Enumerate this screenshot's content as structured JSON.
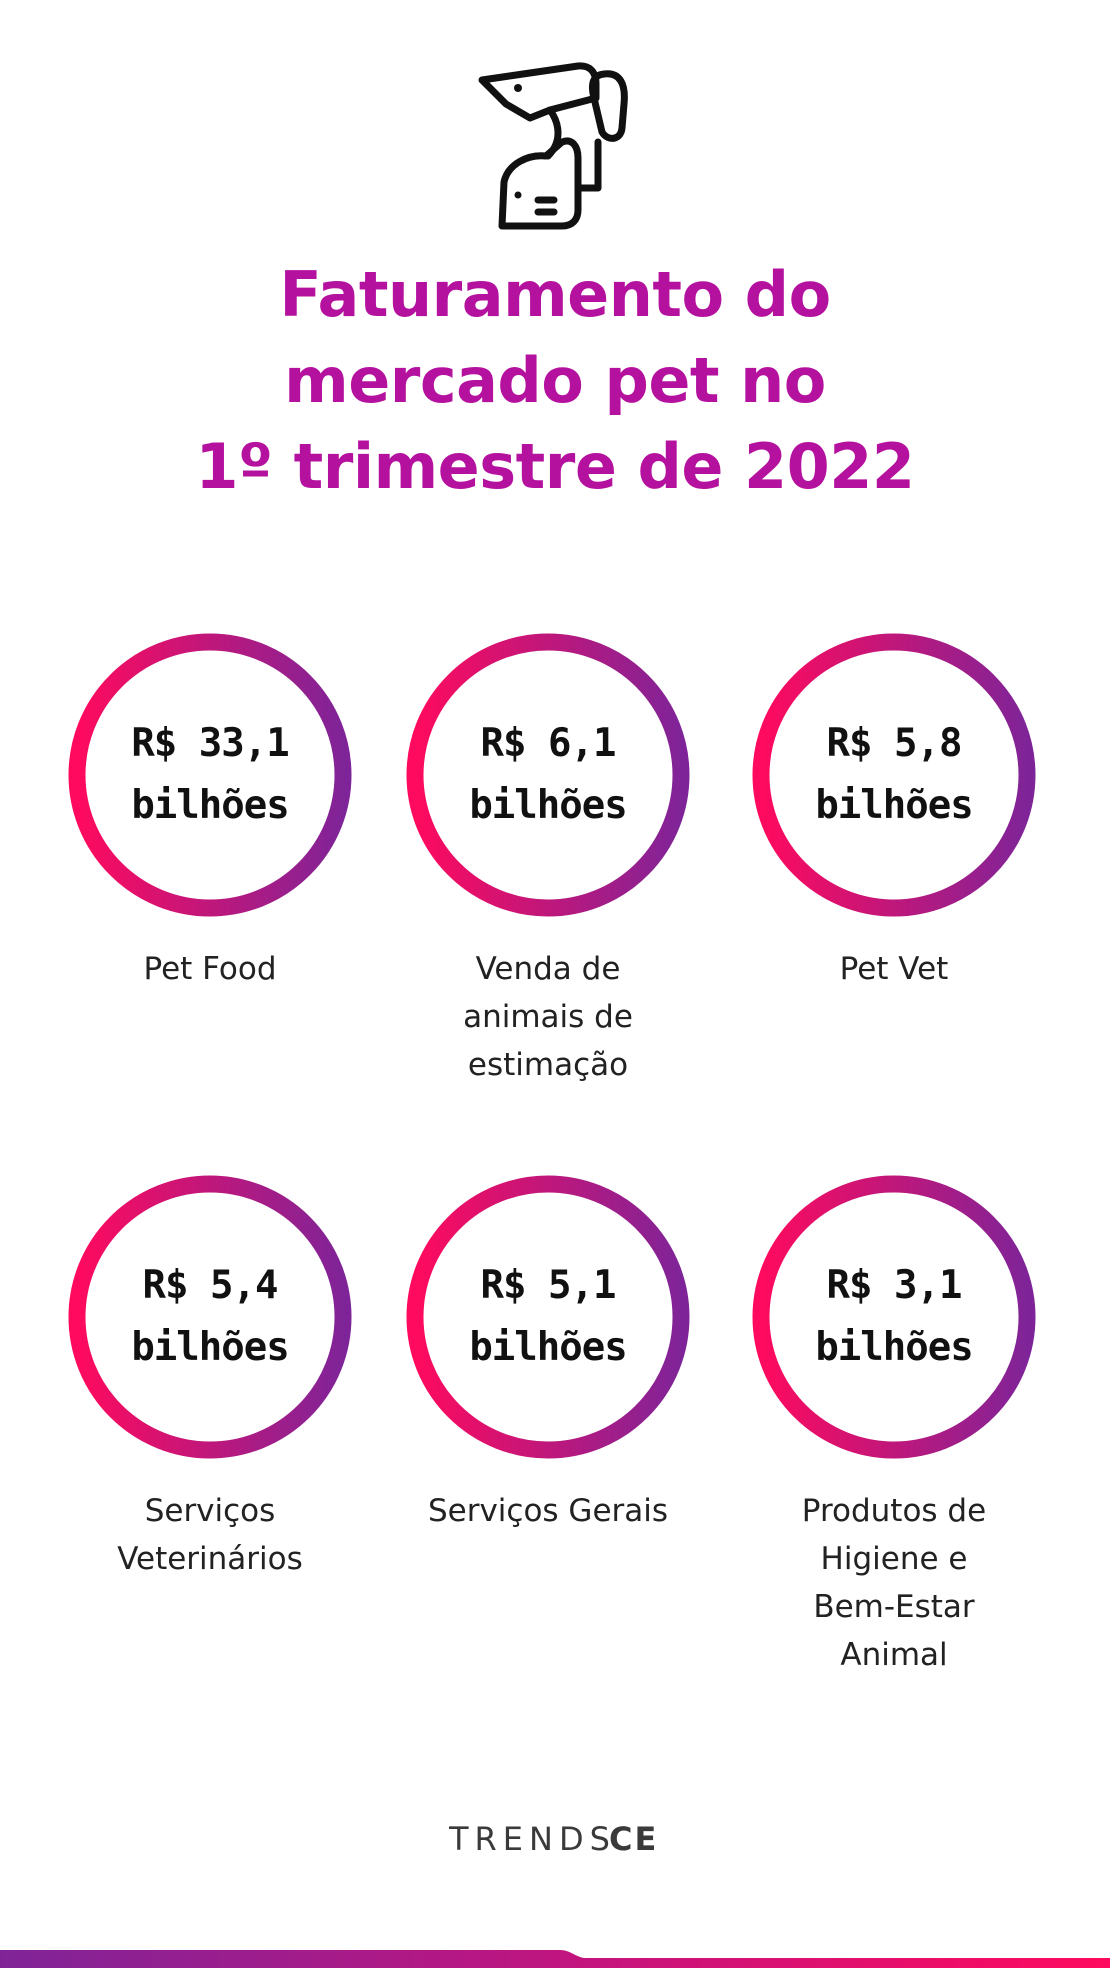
{
  "header": {
    "icon": "dog-and-cat-icon",
    "title_lines": [
      "Faturamento do",
      "mercado pet no",
      "1º trimestre de 2022"
    ]
  },
  "colors": {
    "title": "#b5119f",
    "ring_start": "#ff0a5e",
    "ring_end": "#7f2498",
    "text": "#111111"
  },
  "items": [
    {
      "value_line1": "R$ 33,1",
      "value_line2": "bilhões",
      "label_lines": [
        "Pet Food"
      ]
    },
    {
      "value_line1": "R$ 6,1",
      "value_line2": "bilhões",
      "label_lines": [
        "Venda de",
        "animais de",
        "estimação"
      ]
    },
    {
      "value_line1": "R$ 5,8",
      "value_line2": "bilhões",
      "label_lines": [
        "Pet Vet"
      ]
    },
    {
      "value_line1": "R$ 5,4",
      "value_line2": "bilhões",
      "label_lines": [
        "Serviços",
        "Veterinários"
      ]
    },
    {
      "value_line1": "R$ 5,1",
      "value_line2": "bilhões",
      "label_lines": [
        "Serviços Gerais"
      ]
    },
    {
      "value_line1": "R$ 3,1",
      "value_line2": "bilhões",
      "label_lines": [
        "Produtos de",
        "Higiene e",
        "Bem-Estar",
        "Animal"
      ]
    }
  ],
  "footer": {
    "logo_light": "TRENDS",
    "logo_bold": "CE"
  }
}
